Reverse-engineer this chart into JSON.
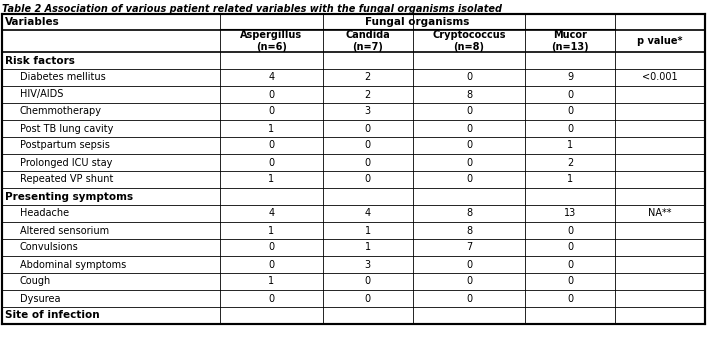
{
  "title": "Table 2 Association of various patient related variables with the fungal organisms isolated",
  "col_headers_row1": [
    "Variables",
    "Fungal organisms",
    "",
    "",
    "",
    ""
  ],
  "col_headers_row2": [
    "",
    "Aspergillus\n(n=6)",
    "Candida\n(n=7)",
    "Cryptococcus\n(n=8)",
    "Mucor\n(n=13)",
    "p value*"
  ],
  "fungal_organisms_label": "Fungal organisms",
  "sections": [
    {
      "label": "Risk factors",
      "bold": true,
      "rows": [
        [
          "  Diabetes mellitus",
          "4",
          "2",
          "0",
          "9",
          "<0.001"
        ],
        [
          "  HIV/AIDS",
          "0",
          "2",
          "8",
          "0",
          ""
        ],
        [
          "  Chemmotherapy",
          "0",
          "3",
          "0",
          "0",
          ""
        ],
        [
          "  Post TB lung cavity",
          "1",
          "0",
          "0",
          "0",
          ""
        ],
        [
          "  Postpartum sepsis",
          "0",
          "0",
          "0",
          "1",
          ""
        ],
        [
          "  Prolonged ICU stay",
          "0",
          "0",
          "0",
          "2",
          ""
        ],
        [
          "  Repeated VP shunt",
          "1",
          "0",
          "0",
          "1",
          ""
        ]
      ]
    },
    {
      "label": "Presenting symptoms",
      "bold": true,
      "rows": [
        [
          "  Headache",
          "4",
          "4",
          "8",
          "13",
          "NA**"
        ],
        [
          "  Altered sensorium",
          "1",
          "1",
          "8",
          "0",
          ""
        ],
        [
          "  Convulsions",
          "0",
          "1",
          "7",
          "0",
          ""
        ],
        [
          "  Abdominal symptoms",
          "0",
          "3",
          "0",
          "0",
          ""
        ],
        [
          "  Cough",
          "1",
          "0",
          "0",
          "0",
          ""
        ],
        [
          "  Dysurea",
          "0",
          "0",
          "0",
          "0",
          ""
        ]
      ]
    },
    {
      "label": "Site of infection",
      "bold": true,
      "rows": []
    }
  ],
  "col_widths_pts": [
    170,
    80,
    70,
    88,
    70,
    70
  ],
  "bg_color": "#ffffff",
  "line_color": "#000000",
  "text_color": "#000000"
}
